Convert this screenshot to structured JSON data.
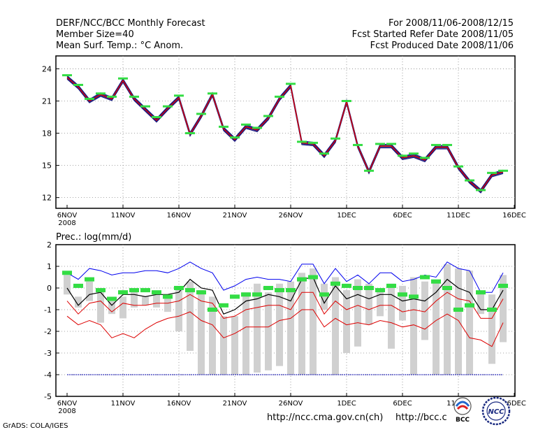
{
  "header": {
    "title": "DERF/NCC/BCC Monthly Forecast",
    "member_size": "Member Size=40",
    "variable": "Mean Surf. Temp.: °C Anom.",
    "forecast_range": "For 2008/11/06-2008/12/15",
    "started_refer": "Fcst Started Refer Date 2008/11/05",
    "produced": "Fcst Produced Date 2008/11/06"
  },
  "footer": {
    "url1": "http://ncc.cma.gov.cn(ch)",
    "url2": "http://bcc.c",
    "grads": "GrADS: COLA/IGES",
    "logo_left_text": "BCC",
    "logo_right_text": "NCC"
  },
  "colors": {
    "member_dark": "#1a1a80",
    "mean_red": "#dd0000",
    "obs_green": "#33dd44",
    "upper_blue": "#0000ee",
    "spread_gray": "#d0d0d0",
    "baseline_blue": "#0000aa"
  },
  "chart_data": [
    {
      "type": "line",
      "title": "Mean Surf. Temp.: °C Anom.",
      "x_tick_labels": [
        "6NOV",
        "11NOV",
        "16NOV",
        "21NOV",
        "26NOV",
        "1DEC",
        "6DEC",
        "11DEC",
        "16DEC"
      ],
      "x_year_label": "2008",
      "ylim": [
        11,
        25.2
      ],
      "yticks": [
        12,
        15,
        18,
        21,
        24
      ],
      "days": 40,
      "series": [
        {
          "name": "forecast-mean",
          "values": [
            23.2,
            22.3,
            21.0,
            21.6,
            21.2,
            22.9,
            21.2,
            20.2,
            19.2,
            20.3,
            21.3,
            17.9,
            19.6,
            21.6,
            18.4,
            17.4,
            18.6,
            18.3,
            19.4,
            21.2,
            22.4,
            17.1,
            17.0,
            15.9,
            17.3,
            20.9,
            16.8,
            14.4,
            16.8,
            16.8,
            15.7,
            15.9,
            15.5,
            16.7,
            16.7,
            14.8,
            13.5,
            12.6,
            14.1,
            14.4
          ]
        },
        {
          "name": "observed",
          "values": [
            23.4,
            22.5,
            21.2,
            21.7,
            21.4,
            23.1,
            21.4,
            20.5,
            19.5,
            20.5,
            21.5,
            18.0,
            19.8,
            21.7,
            18.6,
            17.6,
            18.8,
            18.5,
            19.6,
            21.4,
            22.6,
            17.2,
            17.1,
            16.1,
            17.5,
            21.0,
            16.9,
            14.5,
            17.0,
            17.0,
            15.9,
            16.1,
            15.7,
            16.9,
            16.9,
            14.9,
            13.6,
            12.7,
            14.3,
            14.5
          ]
        }
      ]
    },
    {
      "type": "line",
      "title": "Prec.: log(mm/d)",
      "x_tick_labels": [
        "6NOV",
        "11NOV",
        "16NOV",
        "21NOV",
        "26NOV",
        "1DEC",
        "6DEC",
        "11DEC",
        "16DEC"
      ],
      "x_year_label": "2008",
      "ylim": [
        -5,
        2
      ],
      "yticks": [
        -5,
        -4,
        -3,
        -2,
        -1,
        0,
        1,
        2
      ],
      "days": 40,
      "series": [
        {
          "name": "upper-bound",
          "values": [
            0.7,
            0.4,
            0.9,
            0.8,
            0.6,
            0.7,
            0.7,
            0.8,
            0.8,
            0.7,
            0.9,
            1.2,
            0.9,
            0.7,
            -0.1,
            0.1,
            0.4,
            0.5,
            0.4,
            0.4,
            0.3,
            1.1,
            1.1,
            0.2,
            0.9,
            0.3,
            0.6,
            0.2,
            0.7,
            0.7,
            0.3,
            0.4,
            0.6,
            0.5,
            1.2,
            0.9,
            0.8,
            -0.2,
            -0.2,
            0.7
          ]
        },
        {
          "name": "ensemble-mean",
          "values": [
            0.0,
            -0.8,
            -0.3,
            -0.2,
            -0.8,
            -0.3,
            -0.3,
            -0.4,
            -0.3,
            -0.3,
            -0.2,
            0.4,
            0.0,
            -0.1,
            -1.2,
            -1.0,
            -0.6,
            -0.5,
            -0.3,
            -0.4,
            -0.6,
            0.4,
            0.5,
            -0.7,
            0.1,
            -0.5,
            -0.3,
            -0.5,
            -0.3,
            -0.3,
            -0.6,
            -0.5,
            -0.6,
            -0.2,
            0.4,
            0.0,
            -0.2,
            -1.0,
            -1.0,
            -0.1
          ]
        },
        {
          "name": "mid-bound",
          "values": [
            -0.6,
            -1.2,
            -0.7,
            -0.6,
            -1.1,
            -0.7,
            -0.8,
            -0.8,
            -0.7,
            -0.7,
            -0.6,
            -0.3,
            -0.6,
            -0.7,
            -1.4,
            -1.3,
            -1.0,
            -0.9,
            -0.8,
            -0.8,
            -1.0,
            -0.2,
            -0.2,
            -1.2,
            -0.6,
            -1.0,
            -0.8,
            -1.0,
            -0.8,
            -0.8,
            -1.1,
            -1.0,
            -1.1,
            -0.6,
            -0.2,
            -0.5,
            -0.6,
            -1.4,
            -1.4,
            -0.5
          ]
        },
        {
          "name": "lower-bound",
          "values": [
            -1.3,
            -1.7,
            -1.5,
            -1.7,
            -2.3,
            -2.1,
            -2.3,
            -1.9,
            -1.6,
            -1.4,
            -1.3,
            -1.1,
            -1.5,
            -1.7,
            -2.3,
            -2.1,
            -1.8,
            -1.8,
            -1.8,
            -1.5,
            -1.4,
            -1.0,
            -1.0,
            -1.8,
            -1.4,
            -1.7,
            -1.6,
            -1.7,
            -1.5,
            -1.6,
            -1.8,
            -1.7,
            -1.9,
            -1.5,
            -1.2,
            -1.5,
            -2.3,
            -2.4,
            -2.7,
            -1.6
          ]
        },
        {
          "name": "observed",
          "values": [
            0.7,
            0.1,
            0.4,
            -0.1,
            -0.5,
            -0.2,
            -0.1,
            -0.1,
            -0.2,
            -0.4,
            0.0,
            -0.1,
            -0.2,
            -1.0,
            -0.8,
            -0.4,
            -0.3,
            -0.3,
            0.0,
            -0.1,
            -0.1,
            0.4,
            0.5,
            -0.3,
            0.2,
            0.1,
            0.0,
            0.0,
            -0.1,
            0.1,
            -0.3,
            -0.4,
            0.5,
            0.3,
            0.0,
            -1.0,
            -0.8,
            -0.2,
            -1.0,
            0.1
          ]
        },
        {
          "name": "spread-top",
          "values": [
            0.6,
            -0.4,
            0.3,
            -0.2,
            -0.6,
            -0.4,
            -0.1,
            -0.4,
            -0.3,
            -0.4,
            0.0,
            0.3,
            -0.1,
            -0.4,
            -1.3,
            -1.3,
            -0.2,
            0.2,
            -0.2,
            0.2,
            0.3,
            0.7,
            0.9,
            0.2,
            0.5,
            -0.1,
            0.4,
            0.2,
            -0.1,
            0.2,
            0.1,
            0.5,
            0.3,
            0.3,
            1.1,
            0.9,
            0.8,
            -0.2,
            -0.3,
            0.6
          ]
        },
        {
          "name": "spread-bottom",
          "values": [
            -0.3,
            -0.9,
            -0.6,
            -1.6,
            -1.2,
            -1.4,
            -0.9,
            -0.8,
            -0.9,
            -1.1,
            -2.0,
            -2.9,
            -4.0,
            -4.0,
            -4.0,
            -4.0,
            -4.0,
            -3.9,
            -3.8,
            -3.6,
            -4.0,
            -4.0,
            -4.0,
            -1.0,
            -4.0,
            -3.0,
            -2.7,
            -1.7,
            -1.3,
            -2.8,
            -1.5,
            -4.0,
            -2.4,
            -4.0,
            -4.0,
            -4.0,
            -4.0,
            -1.2,
            -3.5,
            -2.5
          ]
        },
        {
          "name": "dry-threshold",
          "values": [
            -4,
            -4
          ]
        }
      ]
    }
  ]
}
